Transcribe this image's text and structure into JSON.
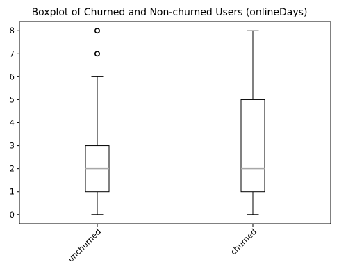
{
  "chart_data": {
    "type": "boxplot",
    "title": "Boxplot of Churned and Non-churned Users (onlineDays)",
    "xlabel": "",
    "ylabel": "",
    "categories": [
      "unchurned",
      "churned"
    ],
    "ylim": [
      -0.4,
      8.4
    ],
    "yticks": [
      0,
      1,
      2,
      3,
      4,
      5,
      6,
      7,
      8
    ],
    "boxes": [
      {
        "category": "unchurned",
        "whisker_low": 0,
        "q1": 1,
        "median": 2,
        "q3": 3,
        "whisker_high": 6,
        "outliers": [
          7,
          8
        ]
      },
      {
        "category": "churned",
        "whisker_low": 0,
        "q1": 1,
        "median": 2,
        "q3": 5,
        "whisker_high": 8,
        "outliers": []
      }
    ],
    "grid": false,
    "legend": "none",
    "colors": {
      "box": "#000000",
      "median": "#a8a8a8",
      "outlier": "#000000"
    }
  }
}
